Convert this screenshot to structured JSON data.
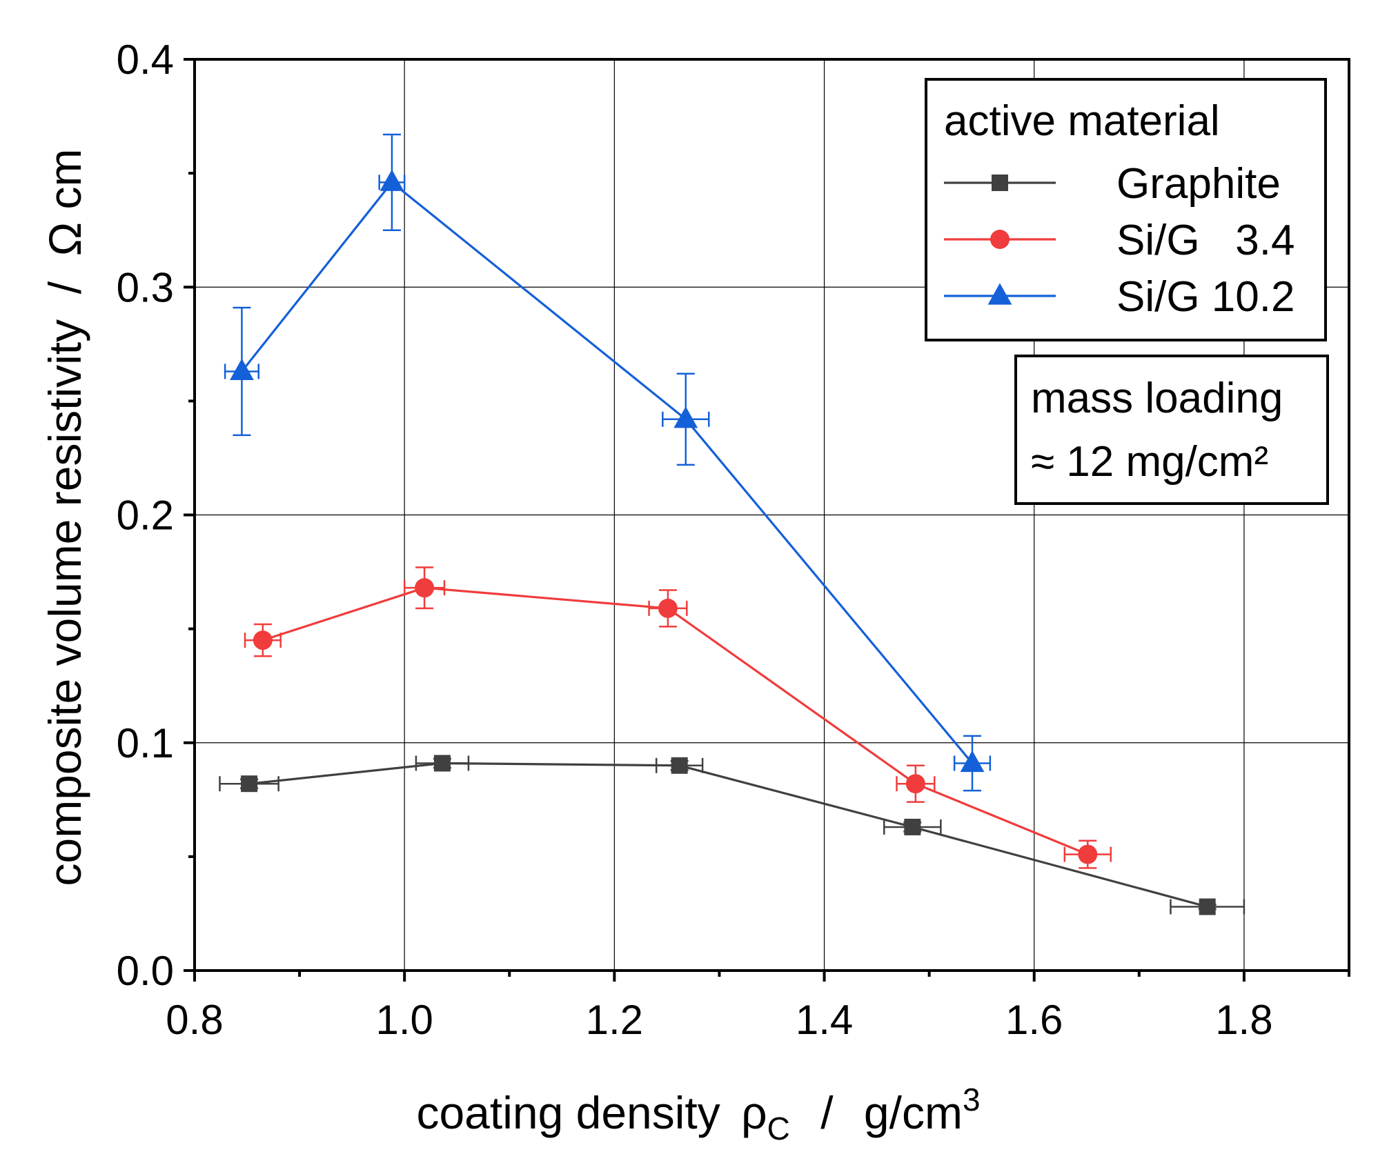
{
  "chart_data": {
    "type": "line",
    "xlabel": "coating density",
    "xlabel_symbol": "ρ",
    "xlabel_symbol_sub": "C",
    "xlabel_unit_sep": "/",
    "xlabel_unit": "g/cm",
    "xlabel_unit_sup": "3",
    "ylabel": "composite volume resistivity  /  Ω cm",
    "xlim": [
      0.8,
      1.9
    ],
    "ylim": [
      0.0,
      0.4
    ],
    "xticks": [
      0.8,
      1.0,
      1.2,
      1.4,
      1.6,
      1.8
    ],
    "xtick_labels": [
      "0.8",
      "1.0",
      "1.2",
      "1.4",
      "1.6",
      "1.8"
    ],
    "yticks": [
      0.0,
      0.1,
      0.2,
      0.3,
      0.4
    ],
    "ytick_labels": [
      "0.0",
      "0.1",
      "0.2",
      "0.3",
      "0.4"
    ],
    "grid": true,
    "legend_title": "active material",
    "legend_position": "top-right",
    "series": [
      {
        "name": "Graphite",
        "color": "#404040",
        "marker": "square",
        "x": [
          0.852,
          1.036,
          1.262,
          1.484,
          1.765
        ],
        "y": [
          0.082,
          0.091,
          0.09,
          0.063,
          0.028
        ],
        "xerr": [
          0.028,
          0.025,
          0.022,
          0.027,
          0.035
        ],
        "yerr": [
          0.002,
          0.002,
          0.002,
          0.002,
          0.001
        ]
      },
      {
        "name": "Si/G   3.4",
        "color": "#f03c3c",
        "marker": "circle",
        "x": [
          0.865,
          1.019,
          1.251,
          1.487,
          1.651
        ],
        "y": [
          0.145,
          0.168,
          0.159,
          0.082,
          0.051
        ],
        "xerr": [
          0.017,
          0.019,
          0.018,
          0.018,
          0.022
        ],
        "yerr": [
          0.007,
          0.009,
          0.008,
          0.008,
          0.006
        ]
      },
      {
        "name": "Si/G 10.2",
        "color": "#1460d8",
        "marker": "triangle",
        "x": [
          0.845,
          0.988,
          1.268,
          1.541
        ],
        "y": [
          0.263,
          0.346,
          0.242,
          0.091
        ],
        "xerr": [
          0.016,
          0.012,
          0.022,
          0.017
        ],
        "yerr": [
          0.028,
          0.021,
          0.02,
          0.012
        ]
      }
    ],
    "annotation": {
      "line1": "mass loading",
      "line2": "≈ 12 mg/cm²"
    }
  }
}
